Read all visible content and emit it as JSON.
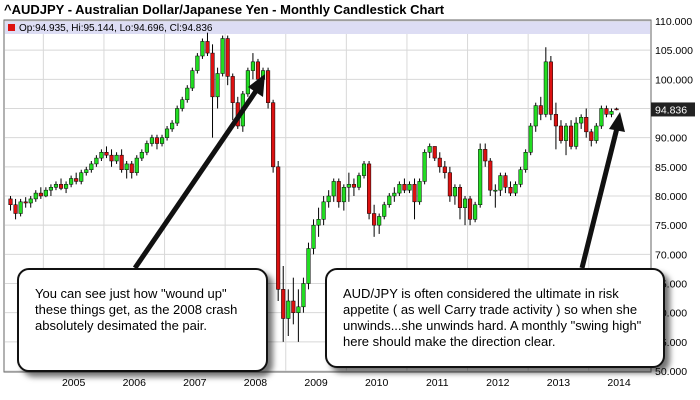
{
  "title": "^AUDJPY - Australian Dollar/Japanese Yen - Monthly Candlestick Chart",
  "ohlc_label": "Op:94.935, Hi:95.144, Lo:94.696, Cl:94.836",
  "last_price_label": "94.836",
  "annotations": {
    "left": "You can see just how \"wound up\" these things get, as the 2008 crash absolutely desimated the pair.",
    "right": "AUD/JPY is often considered the ultimate in risk appetite ( as well Carry trade activity ) so when she unwinds...she unwinds hard. A monthly \"swing high\" here should make the direction clear."
  },
  "colors": {
    "up": "#22dd22",
    "down": "#dd1111",
    "grid": "#d8d8d8",
    "ohlc_bar": "#ddddf4",
    "price_box": "#222222"
  },
  "chart_data": {
    "type": "candlestick",
    "timeframe": "monthly",
    "ylim": [
      50,
      110
    ],
    "y_ticks": [
      "110.000",
      "105.000",
      "100.000",
      "95.000",
      "90.000",
      "85.000",
      "80.000",
      "75.000",
      "70.000",
      "65.000",
      "60.000",
      "55.000",
      "50.000"
    ],
    "x_ticks": [
      "2005",
      "2006",
      "2007",
      "2008",
      "2009",
      "2010",
      "2011",
      "2012",
      "2013",
      "2014"
    ],
    "candles_start": "2004-06",
    "candles": [
      [
        79.5,
        80.0,
        77.5,
        78.5
      ],
      [
        78.5,
        79.5,
        76.0,
        77.0
      ],
      [
        77.0,
        79.5,
        76.5,
        79.0
      ],
      [
        79.0,
        79.8,
        78.0,
        78.8
      ],
      [
        78.8,
        80.0,
        78.0,
        79.5
      ],
      [
        79.5,
        81.0,
        79.0,
        80.5
      ],
      [
        80.5,
        81.5,
        79.5,
        80.0
      ],
      [
        80.0,
        81.5,
        79.8,
        81.0
      ],
      [
        81.0,
        82.0,
        80.0,
        81.5
      ],
      [
        81.5,
        82.5,
        81.0,
        82.0
      ],
      [
        82.0,
        83.0,
        81.0,
        81.3
      ],
      [
        81.3,
        82.5,
        80.5,
        82.0
      ],
      [
        82.0,
        83.5,
        81.5,
        83.0
      ],
      [
        83.0,
        84.0,
        82.0,
        82.5
      ],
      [
        82.5,
        84.5,
        82.0,
        84.0
      ],
      [
        84.0,
        85.0,
        83.5,
        84.5
      ],
      [
        84.5,
        86.0,
        84.0,
        85.5
      ],
      [
        85.5,
        87.0,
        85.0,
        86.5
      ],
      [
        86.5,
        88.0,
        86.0,
        87.5
      ],
      [
        87.5,
        88.5,
        86.5,
        87.0
      ],
      [
        87.0,
        88.0,
        85.0,
        86.0
      ],
      [
        86.0,
        87.5,
        85.5,
        87.0
      ],
      [
        87.0,
        88.0,
        84.0,
        84.5
      ],
      [
        84.5,
        86.0,
        83.0,
        85.5
      ],
      [
        85.5,
        86.0,
        83.0,
        84.0
      ],
      [
        84.0,
        87.0,
        83.5,
        86.5
      ],
      [
        86.5,
        88.0,
        86.0,
        87.5
      ],
      [
        87.5,
        89.5,
        87.0,
        89.0
      ],
      [
        89.0,
        90.5,
        88.5,
        90.0
      ],
      [
        90.0,
        90.5,
        88.0,
        89.0
      ],
      [
        89.0,
        90.5,
        88.5,
        90.0
      ],
      [
        90.0,
        92.0,
        89.5,
        91.5
      ],
      [
        91.5,
        93.0,
        91.0,
        92.5
      ],
      [
        92.5,
        95.5,
        92.0,
        95.0
      ],
      [
        95.0,
        97.0,
        94.5,
        96.5
      ],
      [
        96.5,
        99.0,
        96.0,
        98.5
      ],
      [
        98.5,
        102.0,
        98.0,
        101.5
      ],
      [
        101.5,
        104.5,
        101.0,
        104.0
      ],
      [
        104.0,
        107.0,
        103.5,
        106.5
      ],
      [
        106.5,
        108.0,
        104.0,
        104.5
      ],
      [
        104.5,
        106.0,
        90.0,
        97.0
      ],
      [
        97.0,
        102.0,
        95.0,
        101.0
      ],
      [
        101.0,
        107.5,
        100.5,
        107.0
      ],
      [
        107.0,
        107.5,
        99.0,
        100.5
      ],
      [
        100.5,
        101.0,
        93.0,
        96.0
      ],
      [
        96.0,
        97.0,
        91.5,
        92.0
      ],
      [
        92.0,
        98.0,
        91.0,
        97.5
      ],
      [
        97.5,
        102.0,
        97.0,
        101.5
      ],
      [
        101.5,
        104.5,
        100.0,
        103.0
      ],
      [
        103.0,
        103.5,
        99.0,
        100.0
      ],
      [
        100.0,
        102.0,
        99.0,
        101.5
      ],
      [
        101.5,
        102.0,
        95.0,
        96.0
      ],
      [
        96.0,
        96.5,
        84.0,
        85.0
      ],
      [
        85.0,
        86.0,
        62.0,
        64.0
      ],
      [
        64.0,
        68.0,
        55.0,
        59.0
      ],
      [
        59.0,
        64.0,
        56.0,
        62.0
      ],
      [
        62.0,
        66.0,
        58.0,
        60.0
      ],
      [
        60.0,
        64.0,
        55.0,
        61.0
      ],
      [
        61.0,
        66.0,
        60.0,
        65.0
      ],
      [
        65.0,
        72.0,
        64.0,
        71.0
      ],
      [
        71.0,
        76.0,
        70.0,
        75.0
      ],
      [
        75.0,
        78.0,
        73.0,
        76.0
      ],
      [
        76.0,
        80.0,
        75.0,
        79.0
      ],
      [
        79.0,
        81.0,
        78.0,
        80.0
      ],
      [
        80.0,
        83.0,
        79.0,
        82.5
      ],
      [
        82.5,
        83.0,
        78.0,
        79.0
      ],
      [
        79.0,
        82.0,
        77.5,
        81.5
      ],
      [
        81.5,
        84.0,
        79.0,
        82.0
      ],
      [
        82.0,
        83.0,
        80.0,
        81.5
      ],
      [
        81.5,
        84.0,
        81.0,
        83.5
      ],
      [
        83.5,
        86.0,
        83.0,
        85.5
      ],
      [
        85.5,
        86.0,
        76.0,
        77.0
      ],
      [
        77.0,
        78.5,
        73.0,
        75.0
      ],
      [
        75.0,
        77.0,
        73.5,
        76.5
      ],
      [
        76.5,
        79.0,
        76.0,
        78.5
      ],
      [
        78.5,
        80.5,
        78.0,
        80.0
      ],
      [
        80.0,
        81.5,
        79.0,
        80.5
      ],
      [
        80.5,
        82.5,
        80.0,
        82.0
      ],
      [
        82.0,
        83.0,
        80.5,
        81.0
      ],
      [
        81.0,
        82.5,
        80.5,
        82.0
      ],
      [
        82.0,
        83.0,
        76.0,
        79.0
      ],
      [
        79.0,
        83.0,
        78.5,
        82.5
      ],
      [
        82.5,
        88.0,
        82.0,
        87.5
      ],
      [
        87.5,
        89.0,
        86.5,
        88.5
      ],
      [
        88.5,
        88.5,
        86.0,
        86.5
      ],
      [
        86.5,
        87.5,
        84.0,
        85.0
      ],
      [
        85.0,
        86.0,
        83.0,
        84.0
      ],
      [
        84.0,
        85.0,
        79.0,
        80.0
      ],
      [
        80.0,
        82.0,
        78.5,
        81.5
      ],
      [
        81.5,
        82.0,
        76.0,
        78.0
      ],
      [
        78.0,
        80.0,
        75.0,
        79.5
      ],
      [
        79.5,
        80.0,
        75.0,
        76.0
      ],
      [
        76.0,
        79.0,
        75.5,
        78.5
      ],
      [
        78.5,
        89.0,
        78.0,
        88.0
      ],
      [
        88.0,
        89.0,
        85.0,
        86.0
      ],
      [
        86.0,
        86.5,
        80.0,
        81.0
      ],
      [
        81.0,
        82.0,
        78.0,
        81.0
      ],
      [
        81.0,
        84.0,
        80.0,
        83.5
      ],
      [
        83.5,
        84.0,
        80.5,
        81.5
      ],
      [
        81.5,
        82.5,
        80.0,
        80.5
      ],
      [
        80.5,
        82.5,
        80.0,
        82.0
      ],
      [
        82.0,
        85.0,
        81.5,
        84.5
      ],
      [
        84.5,
        88.0,
        84.0,
        87.5
      ],
      [
        87.5,
        92.5,
        87.0,
        92.0
      ],
      [
        92.0,
        96.0,
        91.0,
        95.5
      ],
      [
        95.5,
        97.0,
        93.0,
        94.0
      ],
      [
        94.0,
        105.5,
        93.5,
        103.0
      ],
      [
        103.0,
        104.0,
        93.0,
        94.0
      ],
      [
        94.0,
        96.0,
        88.0,
        92.0
      ],
      [
        92.0,
        93.0,
        89.0,
        89.5
      ],
      [
        89.5,
        92.5,
        87.0,
        92.0
      ],
      [
        92.0,
        93.0,
        88.0,
        88.5
      ],
      [
        88.5,
        93.5,
        88.0,
        92.5
      ],
      [
        92.5,
        94.0,
        91.5,
        93.5
      ],
      [
        93.5,
        95.0,
        90.0,
        91.0
      ],
      [
        91.0,
        91.5,
        88.5,
        89.5
      ],
      [
        89.5,
        92.5,
        89.0,
        92.0
      ],
      [
        92.0,
        95.5,
        91.5,
        95.0
      ],
      [
        95.0,
        95.5,
        93.5,
        94.0
      ],
      [
        94.0,
        95.0,
        93.5,
        94.5
      ],
      [
        94.935,
        95.144,
        94.696,
        94.836
      ]
    ]
  }
}
